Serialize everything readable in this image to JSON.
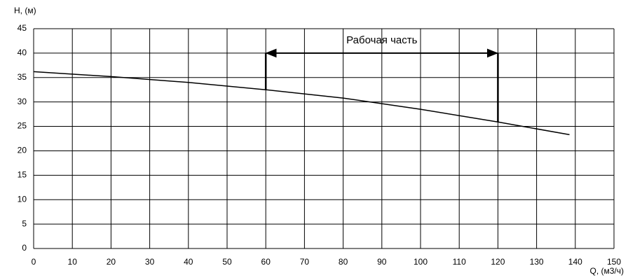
{
  "chart_data": {
    "type": "line",
    "y_label": "H, (м)",
    "x_label": "Q, (м3/ч)",
    "x": [
      0,
      20,
      40,
      60,
      80,
      100,
      120,
      138.5
    ],
    "values": [
      36.2,
      35.2,
      34.0,
      32.5,
      30.8,
      28.5,
      25.9,
      23.3
    ],
    "color": "#000000",
    "xlim": [
      0,
      150
    ],
    "xticks": [
      0,
      10,
      20,
      30,
      40,
      50,
      60,
      70,
      80,
      90,
      100,
      110,
      120,
      130,
      140,
      150
    ],
    "ylim": [
      0,
      45
    ],
    "yticks": [
      0,
      5,
      10,
      15,
      20,
      25,
      30,
      35,
      40,
      45
    ],
    "grid": true,
    "working_range": {
      "label": "Рабочая часть",
      "x": [
        60,
        120
      ],
      "y": 40
    }
  }
}
